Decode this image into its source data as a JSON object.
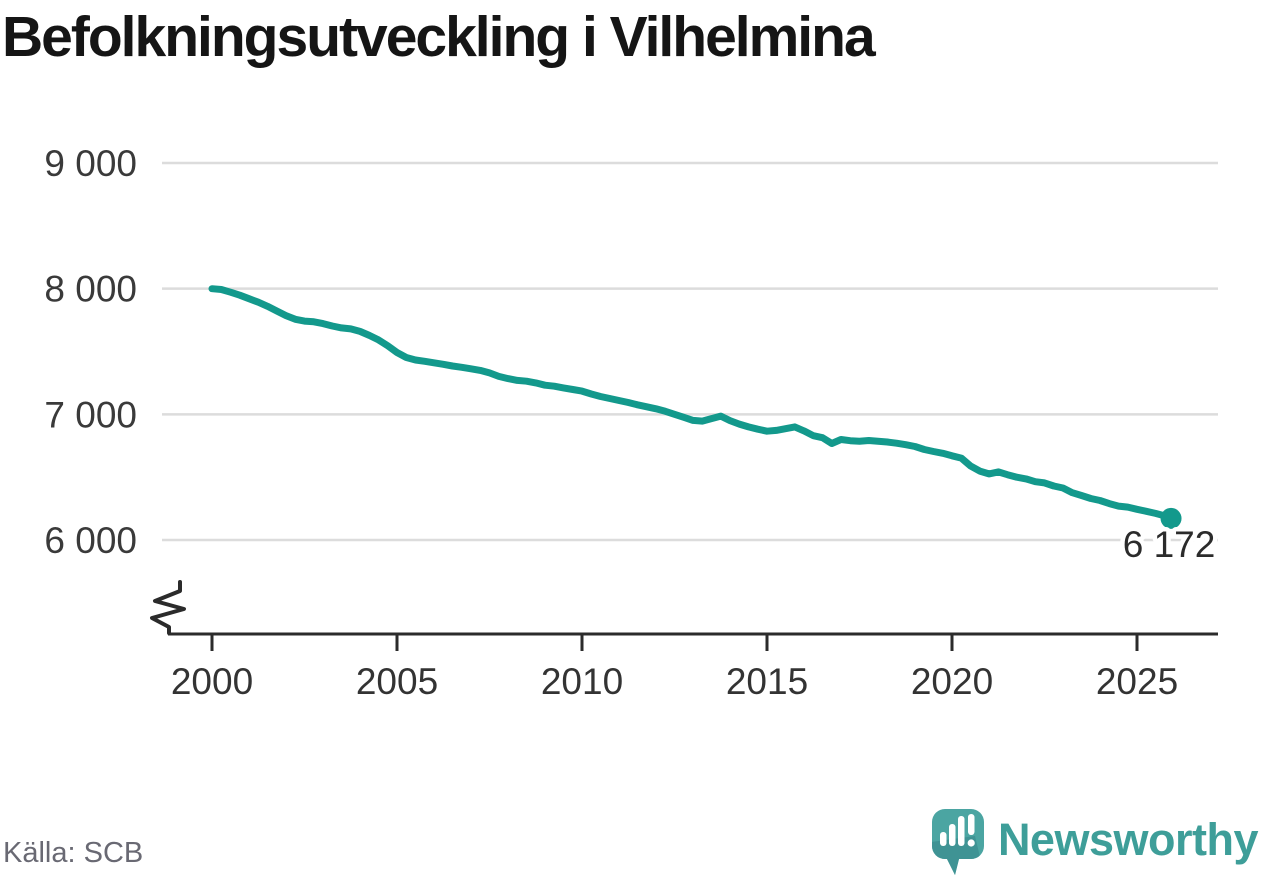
{
  "title": "Befolkningsutveckling i Vilhelmina",
  "source": "Källa: SCB",
  "logo": {
    "text": "Newsworthy"
  },
  "colors": {
    "line": "#13998C",
    "end_dot": "#13998C",
    "grid": "#DCDCDC",
    "axis": "#2B2B2B",
    "x_tick_text": "#333333",
    "y_tick_text": "#3A3A3A",
    "title_text": "#151515",
    "source_text": "#696973",
    "end_label_text": "#2B2B2B",
    "logo_main": "#4BA5A2",
    "logo_shade": "#3F9394",
    "logo_text": "#3E9E99"
  },
  "chart_data": {
    "type": "line",
    "title": "Befolkningsutveckling i Vilhelmina",
    "xlabel": "",
    "ylabel": "",
    "grid": "horizontal",
    "legend": "none",
    "axis_break_bottom": true,
    "x_range_years": [
      2000,
      2027.2
    ],
    "y_ticks": [
      {
        "value": 9000,
        "label": "9 000"
      },
      {
        "value": 8000,
        "label": "8 000"
      },
      {
        "value": 7000,
        "label": "7 000"
      },
      {
        "value": 6000,
        "label": "6 000"
      }
    ],
    "x_ticks": [
      {
        "value": 2000,
        "label": "2000"
      },
      {
        "value": 2005,
        "label": "2005"
      },
      {
        "value": 2010,
        "label": "2010"
      },
      {
        "value": 2015,
        "label": "2015"
      },
      {
        "value": 2020,
        "label": "2020"
      },
      {
        "value": 2025,
        "label": "2025"
      }
    ],
    "last_value": 6172,
    "last_point_label": "6 172",
    "series": [
      {
        "name": "Befolkning",
        "x": [
          2000,
          2000.25,
          2000.5,
          2000.75,
          2001,
          2001.25,
          2001.5,
          2001.75,
          2002,
          2002.25,
          2002.5,
          2002.75,
          2003,
          2003.25,
          2003.5,
          2003.75,
          2004,
          2004.25,
          2004.5,
          2004.75,
          2005,
          2005.25,
          2005.5,
          2005.75,
          2006,
          2006.25,
          2006.5,
          2006.75,
          2007,
          2007.25,
          2007.5,
          2007.75,
          2008,
          2008.25,
          2008.5,
          2008.75,
          2009,
          2009.25,
          2009.5,
          2009.75,
          2010,
          2010.25,
          2010.5,
          2010.75,
          2011,
          2011.25,
          2011.5,
          2011.75,
          2012,
          2012.25,
          2012.5,
          2012.75,
          2013,
          2013.25,
          2013.5,
          2013.75,
          2014,
          2014.25,
          2014.5,
          2014.75,
          2015,
          2015.25,
          2015.5,
          2015.75,
          2016,
          2016.25,
          2016.5,
          2016.75,
          2017,
          2017.25,
          2017.5,
          2017.75,
          2018,
          2018.25,
          2018.5,
          2018.75,
          2019,
          2019.25,
          2019.5,
          2019.75,
          2020,
          2020.25,
          2020.5,
          2020.75,
          2021,
          2021.25,
          2021.5,
          2021.75,
          2022,
          2022.25,
          2022.5,
          2022.75,
          2023,
          2023.25,
          2023.5,
          2023.75,
          2024,
          2024.25,
          2024.5,
          2024.75,
          2025,
          2025.25,
          2025.5,
          2025.75,
          2025.92
        ],
        "y": [
          8000,
          7993,
          7972,
          7948,
          7920,
          7892,
          7860,
          7822,
          7786,
          7756,
          7742,
          7736,
          7722,
          7703,
          7688,
          7680,
          7660,
          7628,
          7592,
          7545,
          7492,
          7452,
          7432,
          7422,
          7410,
          7398,
          7385,
          7374,
          7362,
          7350,
          7330,
          7302,
          7284,
          7270,
          7264,
          7250,
          7232,
          7224,
          7210,
          7198,
          7185,
          7162,
          7142,
          7126,
          7110,
          7094,
          7076,
          7060,
          7044,
          7024,
          7000,
          6976,
          6952,
          6946,
          6966,
          6986,
          6950,
          6922,
          6900,
          6882,
          6866,
          6872,
          6886,
          6900,
          6868,
          6830,
          6814,
          6768,
          6800,
          6790,
          6786,
          6792,
          6786,
          6780,
          6770,
          6758,
          6744,
          6720,
          6704,
          6690,
          6670,
          6652,
          6590,
          6548,
          6526,
          6542,
          6520,
          6500,
          6486,
          6464,
          6454,
          6430,
          6414,
          6376,
          6354,
          6330,
          6314,
          6290,
          6270,
          6262,
          6244,
          6228,
          6212,
          6192,
          6172
        ]
      }
    ]
  }
}
